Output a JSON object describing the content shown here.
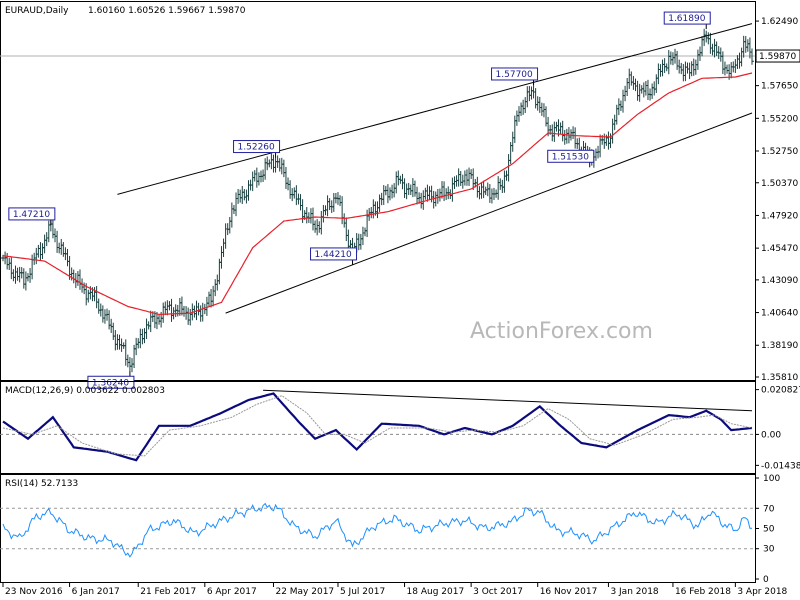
{
  "header": {
    "symbol": "EURAUD,Daily",
    "ohlc": "1.60160 1.60526 1.59667 1.59870"
  },
  "watermark": "ActionForex.com",
  "chart_data": [
    {
      "type": "candlestick",
      "panel": "price",
      "ylim": [
        1.3581,
        1.6362
      ],
      "y_ticks": [
        "1.62490",
        "1.59870",
        "1.57650",
        "1.55200",
        "1.52750",
        "1.50370",
        "1.47920",
        "1.45470",
        "1.43090",
        "1.40640",
        "1.38190",
        "1.35810"
      ],
      "current_price": "1.59870",
      "price_labels": [
        {
          "text": "1.47210",
          "date_index": 23,
          "price": 1.4721
        },
        {
          "text": "1.36240",
          "date_index": 61,
          "price": 1.3624
        },
        {
          "text": "1.52260",
          "date_index": 131,
          "price": 1.5226
        },
        {
          "text": "1.44210",
          "date_index": 168,
          "price": 1.4421
        },
        {
          "text": "1.57700",
          "date_index": 255,
          "price": 1.577
        },
        {
          "text": "1.51530",
          "date_index": 282,
          "price": 1.5153
        },
        {
          "text": "1.61890",
          "date_index": 338,
          "price": 1.6189
        }
      ],
      "trendlines": [
        {
          "from": [
            55,
            1.495
          ],
          "to": [
            360,
            1.623
          ]
        },
        {
          "from": [
            107,
            1.406
          ],
          "to": [
            360,
            1.556
          ]
        }
      ],
      "moving_average": {
        "color": "#e8202a",
        "anchors": [
          [
            0,
            1.449
          ],
          [
            20,
            1.445
          ],
          [
            40,
            1.426
          ],
          [
            60,
            1.411
          ],
          [
            75,
            1.405
          ],
          [
            90,
            1.406
          ],
          [
            105,
            1.414
          ],
          [
            120,
            1.455
          ],
          [
            135,
            1.475
          ],
          [
            150,
            1.478
          ],
          [
            165,
            1.477
          ],
          [
            185,
            1.482
          ],
          [
            205,
            1.491
          ],
          [
            225,
            1.499
          ],
          [
            245,
            1.518
          ],
          [
            262,
            1.541
          ],
          [
            275,
            1.539
          ],
          [
            292,
            1.538
          ],
          [
            305,
            1.555
          ],
          [
            320,
            1.571
          ],
          [
            336,
            1.582
          ],
          [
            352,
            1.583
          ],
          [
            360,
            1.586
          ]
        ]
      },
      "price_anchors": [
        [
          0,
          1.445
        ],
        [
          10,
          1.43
        ],
        [
          23,
          1.47
        ],
        [
          35,
          1.43
        ],
        [
          45,
          1.415
        ],
        [
          55,
          1.385
        ],
        [
          61,
          1.368
        ],
        [
          68,
          1.395
        ],
        [
          80,
          1.41
        ],
        [
          92,
          1.405
        ],
        [
          100,
          1.415
        ],
        [
          110,
          1.485
        ],
        [
          122,
          1.508
        ],
        [
          131,
          1.522
        ],
        [
          140,
          1.493
        ],
        [
          150,
          1.47
        ],
        [
          160,
          1.495
        ],
        [
          168,
          1.45
        ],
        [
          178,
          1.485
        ],
        [
          190,
          1.505
        ],
        [
          200,
          1.493
        ],
        [
          212,
          1.495
        ],
        [
          222,
          1.51
        ],
        [
          232,
          1.495
        ],
        [
          240,
          1.5
        ],
        [
          248,
          1.56
        ],
        [
          255,
          1.572
        ],
        [
          262,
          1.545
        ],
        [
          272,
          1.54
        ],
        [
          282,
          1.522
        ],
        [
          292,
          1.54
        ],
        [
          300,
          1.58
        ],
        [
          310,
          1.57
        ],
        [
          320,
          1.598
        ],
        [
          330,
          1.585
        ],
        [
          338,
          1.614
        ],
        [
          344,
          1.598
        ],
        [
          350,
          1.585
        ],
        [
          356,
          1.607
        ],
        [
          360,
          1.599
        ]
      ],
      "date_labels": [
        "23 Nov 2016",
        "6 Jan 2017",
        "21 Feb 2017",
        "6 Apr 2017",
        "22 May 2017",
        "5 Jul 2017",
        "18 Aug 2017",
        "3 Oct 2017",
        "16 Nov 2017",
        "3 Jan 2018",
        "16 Feb 2018",
        "3 Apr 2018"
      ],
      "date_label_indices": [
        0,
        32,
        65,
        97,
        130,
        161,
        193,
        225,
        257,
        291,
        322,
        352
      ]
    },
    {
      "type": "line",
      "panel": "macd",
      "title": "MACD(12,26,9) 0.003622 0.002803",
      "ylim": [
        -0.017,
        0.0225
      ],
      "y_ticks": [
        "0.020827",
        "0.00",
        "-0.014386"
      ],
      "series": [
        {
          "role": "macd",
          "color": "#0b0b7d",
          "anchors": [
            [
              0,
              0.006
            ],
            [
              12,
              -0.002
            ],
            [
              24,
              0.008
            ],
            [
              34,
              -0.006
            ],
            [
              50,
              -0.008
            ],
            [
              64,
              -0.012
            ],
            [
              75,
              0.004
            ],
            [
              90,
              0.004
            ],
            [
              105,
              0.01
            ],
            [
              118,
              0.016
            ],
            [
              130,
              0.019
            ],
            [
              142,
              0.006
            ],
            [
              150,
              -0.002
            ],
            [
              160,
              0.002
            ],
            [
              170,
              -0.007
            ],
            [
              182,
              0.005
            ],
            [
              200,
              0.004
            ],
            [
              212,
              0.0
            ],
            [
              222,
              0.003
            ],
            [
              235,
              0.0
            ],
            [
              245,
              0.004
            ],
            [
              258,
              0.013
            ],
            [
              268,
              0.004
            ],
            [
              278,
              -0.004
            ],
            [
              290,
              -0.006
            ],
            [
              305,
              0.002
            ],
            [
              320,
              0.009
            ],
            [
              330,
              0.008
            ],
            [
              338,
              0.011
            ],
            [
              345,
              0.007
            ],
            [
              350,
              0.002
            ],
            [
              360,
              0.003
            ]
          ]
        },
        {
          "role": "signal",
          "color": "#999999",
          "anchors": [
            [
              0,
              0.003
            ],
            [
              14,
              0.0
            ],
            [
              26,
              0.004
            ],
            [
              38,
              -0.004
            ],
            [
              54,
              -0.009
            ],
            [
              68,
              -0.01
            ],
            [
              80,
              0.002
            ],
            [
              95,
              0.004
            ],
            [
              110,
              0.008
            ],
            [
              122,
              0.014
            ],
            [
              134,
              0.018
            ],
            [
              146,
              0.01
            ],
            [
              155,
              0.0
            ],
            [
              164,
              0.0
            ],
            [
              174,
              -0.004
            ],
            [
              186,
              0.003
            ],
            [
              204,
              0.003
            ],
            [
              216,
              0.001
            ],
            [
              226,
              0.002
            ],
            [
              238,
              0.001
            ],
            [
              250,
              0.004
            ],
            [
              262,
              0.012
            ],
            [
              272,
              0.007
            ],
            [
              282,
              -0.002
            ],
            [
              294,
              -0.005
            ],
            [
              308,
              0.0
            ],
            [
              322,
              0.007
            ],
            [
              334,
              0.008
            ],
            [
              342,
              0.009
            ],
            [
              350,
              0.005
            ],
            [
              360,
              0.003
            ]
          ]
        }
      ],
      "trendline": {
        "from": [
          125,
          0.0205
        ],
        "to": [
          360,
          0.011
        ]
      }
    },
    {
      "type": "line",
      "panel": "rsi",
      "title": "RSI(14) 52.7133",
      "ylim": [
        0,
        100
      ],
      "y_ticks": [
        "100",
        "70",
        "50",
        "30",
        "0"
      ],
      "series": [
        {
          "role": "rsi",
          "color": "#1e90ff",
          "anchors": [
            [
              0,
              50
            ],
            [
              8,
              40
            ],
            [
              16,
              62
            ],
            [
              23,
              66
            ],
            [
              32,
              48
            ],
            [
              42,
              40
            ],
            [
              52,
              38
            ],
            [
              58,
              28
            ],
            [
              62,
              24
            ],
            [
              70,
              48
            ],
            [
              82,
              58
            ],
            [
              92,
              45
            ],
            [
              102,
              55
            ],
            [
              112,
              64
            ],
            [
              122,
              70
            ],
            [
              131,
              72
            ],
            [
              140,
              52
            ],
            [
              150,
              42
            ],
            [
              160,
              58
            ],
            [
              168,
              32
            ],
            [
              178,
              52
            ],
            [
              188,
              60
            ],
            [
              200,
              48
            ],
            [
              212,
              55
            ],
            [
              222,
              58
            ],
            [
              232,
              50
            ],
            [
              244,
              56
            ],
            [
              252,
              68
            ],
            [
              258,
              66
            ],
            [
              266,
              48
            ],
            [
              276,
              45
            ],
            [
              284,
              38
            ],
            [
              294,
              52
            ],
            [
              304,
              66
            ],
            [
              314,
              55
            ],
            [
              324,
              65
            ],
            [
              334,
              52
            ],
            [
              340,
              67
            ],
            [
              346,
              55
            ],
            [
              352,
              48
            ],
            [
              356,
              60
            ],
            [
              360,
              52
            ]
          ]
        }
      ]
    }
  ]
}
